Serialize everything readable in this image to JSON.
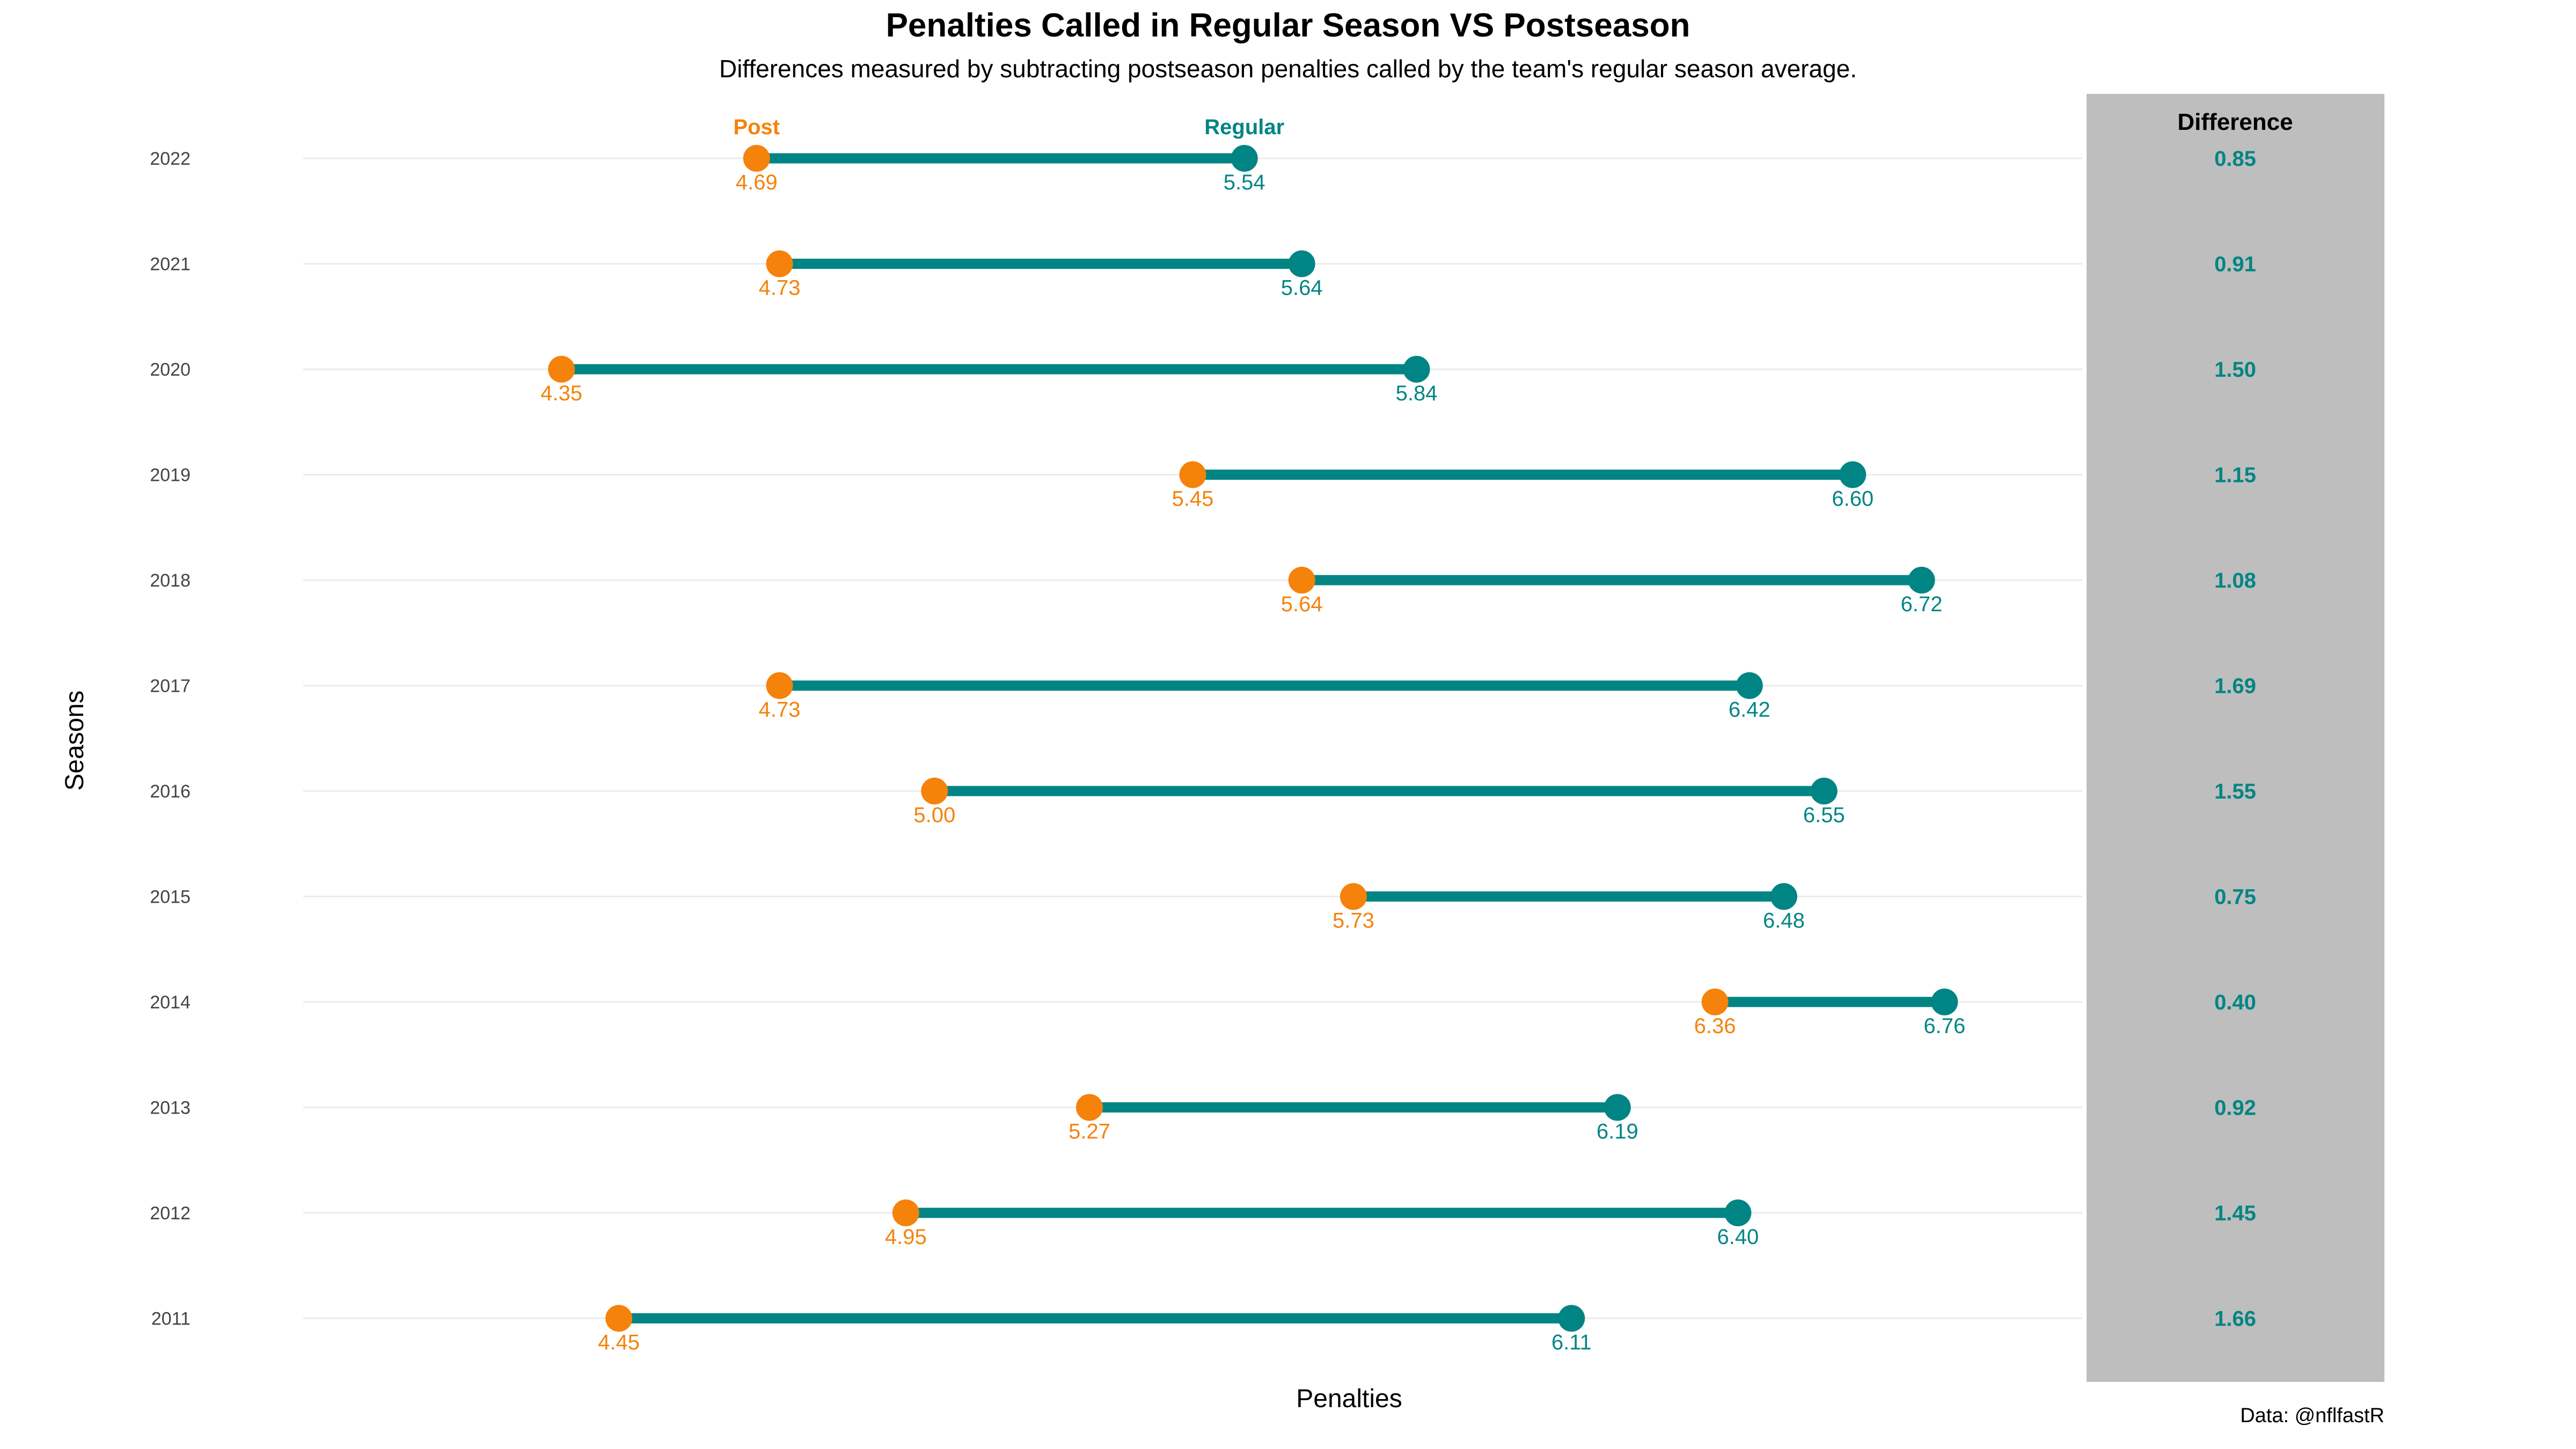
{
  "chart_data": {
    "type": "dumbbell",
    "title": "Penalties Called in Regular Season VS Postseason",
    "subtitle": "Differences measured by subtracting postseason penalties called by the team's regular season average.",
    "xlabel": "Penalties",
    "ylabel": "Seasons",
    "caption": "Data: @nflfastR",
    "xlim": [
      3.9,
      7.0
    ],
    "grid": "horizontal",
    "legend": {
      "post_label": "Post",
      "regular_label": "Regular",
      "placement": "top (above first row)"
    },
    "difference_header": "Difference",
    "colors": {
      "post": "#F5820B",
      "regular": "#008584",
      "panel": "#BEBEBE",
      "grid": "#EBEBEB"
    },
    "rows": [
      {
        "season": "2022",
        "post": 4.69,
        "regular": 5.54,
        "post_label": "4.69",
        "regular_label": "5.54",
        "difference": "0.85"
      },
      {
        "season": "2021",
        "post": 4.73,
        "regular": 5.64,
        "post_label": "4.73",
        "regular_label": "5.64",
        "difference": "0.91"
      },
      {
        "season": "2020",
        "post": 4.35,
        "regular": 5.84,
        "post_label": "4.35",
        "regular_label": "5.84",
        "difference": "1.50"
      },
      {
        "season": "2019",
        "post": 5.45,
        "regular": 6.6,
        "post_label": "5.45",
        "regular_label": "6.60",
        "difference": "1.15"
      },
      {
        "season": "2018",
        "post": 5.64,
        "regular": 6.72,
        "post_label": "5.64",
        "regular_label": "6.72",
        "difference": "1.08"
      },
      {
        "season": "2017",
        "post": 4.73,
        "regular": 6.42,
        "post_label": "4.73",
        "regular_label": "6.42",
        "difference": "1.69"
      },
      {
        "season": "2016",
        "post": 5.0,
        "regular": 6.55,
        "post_label": "5.00",
        "regular_label": "6.55",
        "difference": "1.55"
      },
      {
        "season": "2015",
        "post": 5.73,
        "regular": 6.48,
        "post_label": "5.73",
        "regular_label": "6.48",
        "difference": "0.75"
      },
      {
        "season": "2014",
        "post": 6.36,
        "regular": 6.76,
        "post_label": "6.36",
        "regular_label": "6.76",
        "difference": "0.40"
      },
      {
        "season": "2013",
        "post": 5.27,
        "regular": 6.19,
        "post_label": "5.27",
        "regular_label": "6.19",
        "difference": "0.92"
      },
      {
        "season": "2012",
        "post": 4.95,
        "regular": 6.4,
        "post_label": "4.95",
        "regular_label": "6.40",
        "difference": "1.45"
      },
      {
        "season": "2011",
        "post": 4.45,
        "regular": 6.11,
        "post_label": "4.45",
        "regular_label": "6.11",
        "difference": "1.66"
      }
    ]
  }
}
